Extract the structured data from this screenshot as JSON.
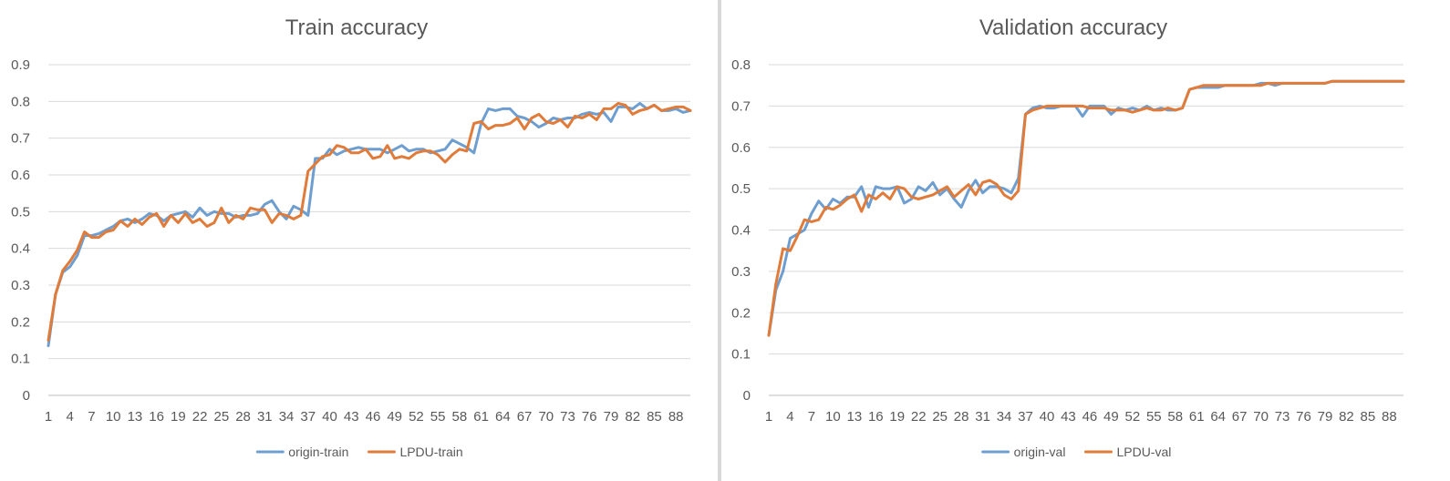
{
  "chart_data": [
    {
      "type": "line",
      "title": "Train accuracy",
      "xlabel": "",
      "ylabel": "",
      "ylim": [
        0,
        0.9
      ],
      "yticks": [
        "0",
        "0.1",
        "0.2",
        "0.3",
        "0.4",
        "0.5",
        "0.6",
        "0.7",
        "0.8",
        "0.9"
      ],
      "xticks": [
        "1",
        "4",
        "7",
        "10",
        "13",
        "16",
        "19",
        "22",
        "25",
        "28",
        "31",
        "34",
        "37",
        "40",
        "43",
        "46",
        "49",
        "52",
        "55",
        "58",
        "61",
        "64",
        "67",
        "70",
        "73",
        "76",
        "79",
        "82",
        "85",
        "88"
      ],
      "x_range": [
        1,
        90
      ],
      "grid": "horizontal",
      "legend_position": "bottom",
      "series": [
        {
          "name": "origin-train",
          "color": "#6E9ECF",
          "values": [
            0.135,
            0.275,
            0.335,
            0.35,
            0.38,
            0.435,
            0.435,
            0.44,
            0.45,
            0.46,
            0.475,
            0.48,
            0.47,
            0.48,
            0.495,
            0.49,
            0.475,
            0.49,
            0.495,
            0.5,
            0.485,
            0.51,
            0.49,
            0.5,
            0.495,
            0.495,
            0.485,
            0.49,
            0.49,
            0.495,
            0.52,
            0.53,
            0.5,
            0.48,
            0.515,
            0.505,
            0.49,
            0.645,
            0.645,
            0.67,
            0.655,
            0.665,
            0.67,
            0.675,
            0.67,
            0.67,
            0.67,
            0.66,
            0.67,
            0.68,
            0.665,
            0.67,
            0.67,
            0.66,
            0.665,
            0.67,
            0.695,
            0.685,
            0.675,
            0.66,
            0.74,
            0.78,
            0.775,
            0.78,
            0.78,
            0.76,
            0.755,
            0.745,
            0.73,
            0.74,
            0.755,
            0.75,
            0.755,
            0.755,
            0.765,
            0.77,
            0.765,
            0.77,
            0.745,
            0.785,
            0.785,
            0.78,
            0.795,
            0.78,
            0.79,
            0.775,
            0.775,
            0.78,
            0.77,
            0.775
          ]
        },
        {
          "name": "LPDU-train",
          "color": "#E07B39",
          "values": [
            0.15,
            0.275,
            0.34,
            0.365,
            0.395,
            0.445,
            0.43,
            0.43,
            0.445,
            0.45,
            0.475,
            0.46,
            0.48,
            0.465,
            0.485,
            0.495,
            0.46,
            0.49,
            0.47,
            0.495,
            0.47,
            0.48,
            0.46,
            0.47,
            0.51,
            0.47,
            0.49,
            0.48,
            0.51,
            0.505,
            0.505,
            0.47,
            0.495,
            0.49,
            0.48,
            0.49,
            0.61,
            0.63,
            0.65,
            0.655,
            0.68,
            0.675,
            0.66,
            0.66,
            0.67,
            0.645,
            0.65,
            0.68,
            0.645,
            0.65,
            0.645,
            0.66,
            0.665,
            0.665,
            0.655,
            0.635,
            0.655,
            0.67,
            0.665,
            0.74,
            0.745,
            0.725,
            0.735,
            0.735,
            0.74,
            0.755,
            0.725,
            0.755,
            0.765,
            0.745,
            0.74,
            0.75,
            0.73,
            0.76,
            0.755,
            0.765,
            0.75,
            0.78,
            0.78,
            0.795,
            0.79,
            0.765,
            0.775,
            0.78,
            0.79,
            0.775,
            0.78,
            0.785,
            0.785,
            0.775
          ]
        }
      ]
    },
    {
      "type": "line",
      "title": "Validation accuracy",
      "xlabel": "",
      "ylabel": "",
      "ylim": [
        0,
        0.8
      ],
      "yticks": [
        "0",
        "0.1",
        "0.2",
        "0.3",
        "0.4",
        "0.5",
        "0.6",
        "0.7",
        "0.8"
      ],
      "xticks": [
        "1",
        "4",
        "7",
        "10",
        "13",
        "16",
        "19",
        "22",
        "25",
        "28",
        "31",
        "34",
        "37",
        "40",
        "43",
        "46",
        "49",
        "52",
        "55",
        "58",
        "61",
        "64",
        "67",
        "70",
        "73",
        "76",
        "79",
        "82",
        "85",
        "88"
      ],
      "x_range": [
        1,
        90
      ],
      "grid": "horizontal",
      "legend_position": "bottom",
      "series": [
        {
          "name": "origin-val",
          "color": "#6E9ECF",
          "values": [
            0.145,
            0.255,
            0.3,
            0.38,
            0.39,
            0.4,
            0.44,
            0.47,
            0.45,
            0.475,
            0.465,
            0.48,
            0.48,
            0.505,
            0.455,
            0.505,
            0.5,
            0.5,
            0.505,
            0.465,
            0.475,
            0.505,
            0.495,
            0.515,
            0.485,
            0.5,
            0.475,
            0.455,
            0.495,
            0.52,
            0.49,
            0.505,
            0.505,
            0.5,
            0.49,
            0.525,
            0.68,
            0.695,
            0.7,
            0.695,
            0.695,
            0.7,
            0.7,
            0.7,
            0.675,
            0.7,
            0.7,
            0.7,
            0.68,
            0.695,
            0.69,
            0.695,
            0.69,
            0.7,
            0.69,
            0.695,
            0.69,
            0.69,
            0.695,
            0.74,
            0.745,
            0.745,
            0.745,
            0.745,
            0.75,
            0.75,
            0.75,
            0.75,
            0.75,
            0.755,
            0.755,
            0.75,
            0.755,
            0.755,
            0.755,
            0.755,
            0.755,
            0.755,
            0.755,
            0.76,
            0.76,
            0.76,
            0.76,
            0.76,
            0.76,
            0.76,
            0.76,
            0.76,
            0.76,
            0.76
          ]
        },
        {
          "name": "LPDU-val",
          "color": "#E07B39",
          "values": [
            0.145,
            0.27,
            0.355,
            0.35,
            0.385,
            0.425,
            0.42,
            0.425,
            0.455,
            0.45,
            0.46,
            0.475,
            0.485,
            0.445,
            0.485,
            0.475,
            0.49,
            0.475,
            0.505,
            0.5,
            0.48,
            0.475,
            0.48,
            0.485,
            0.495,
            0.505,
            0.48,
            0.495,
            0.51,
            0.485,
            0.515,
            0.52,
            0.51,
            0.485,
            0.475,
            0.495,
            0.68,
            0.69,
            0.695,
            0.7,
            0.7,
            0.7,
            0.7,
            0.7,
            0.7,
            0.695,
            0.695,
            0.695,
            0.69,
            0.69,
            0.69,
            0.685,
            0.69,
            0.695,
            0.69,
            0.69,
            0.695,
            0.69,
            0.695,
            0.74,
            0.745,
            0.75,
            0.75,
            0.75,
            0.75,
            0.75,
            0.75,
            0.75,
            0.75,
            0.75,
            0.755,
            0.755,
            0.755,
            0.755,
            0.755,
            0.755,
            0.755,
            0.755,
            0.755,
            0.76,
            0.76,
            0.76,
            0.76,
            0.76,
            0.76,
            0.76,
            0.76,
            0.76,
            0.76,
            0.76
          ]
        }
      ]
    }
  ]
}
